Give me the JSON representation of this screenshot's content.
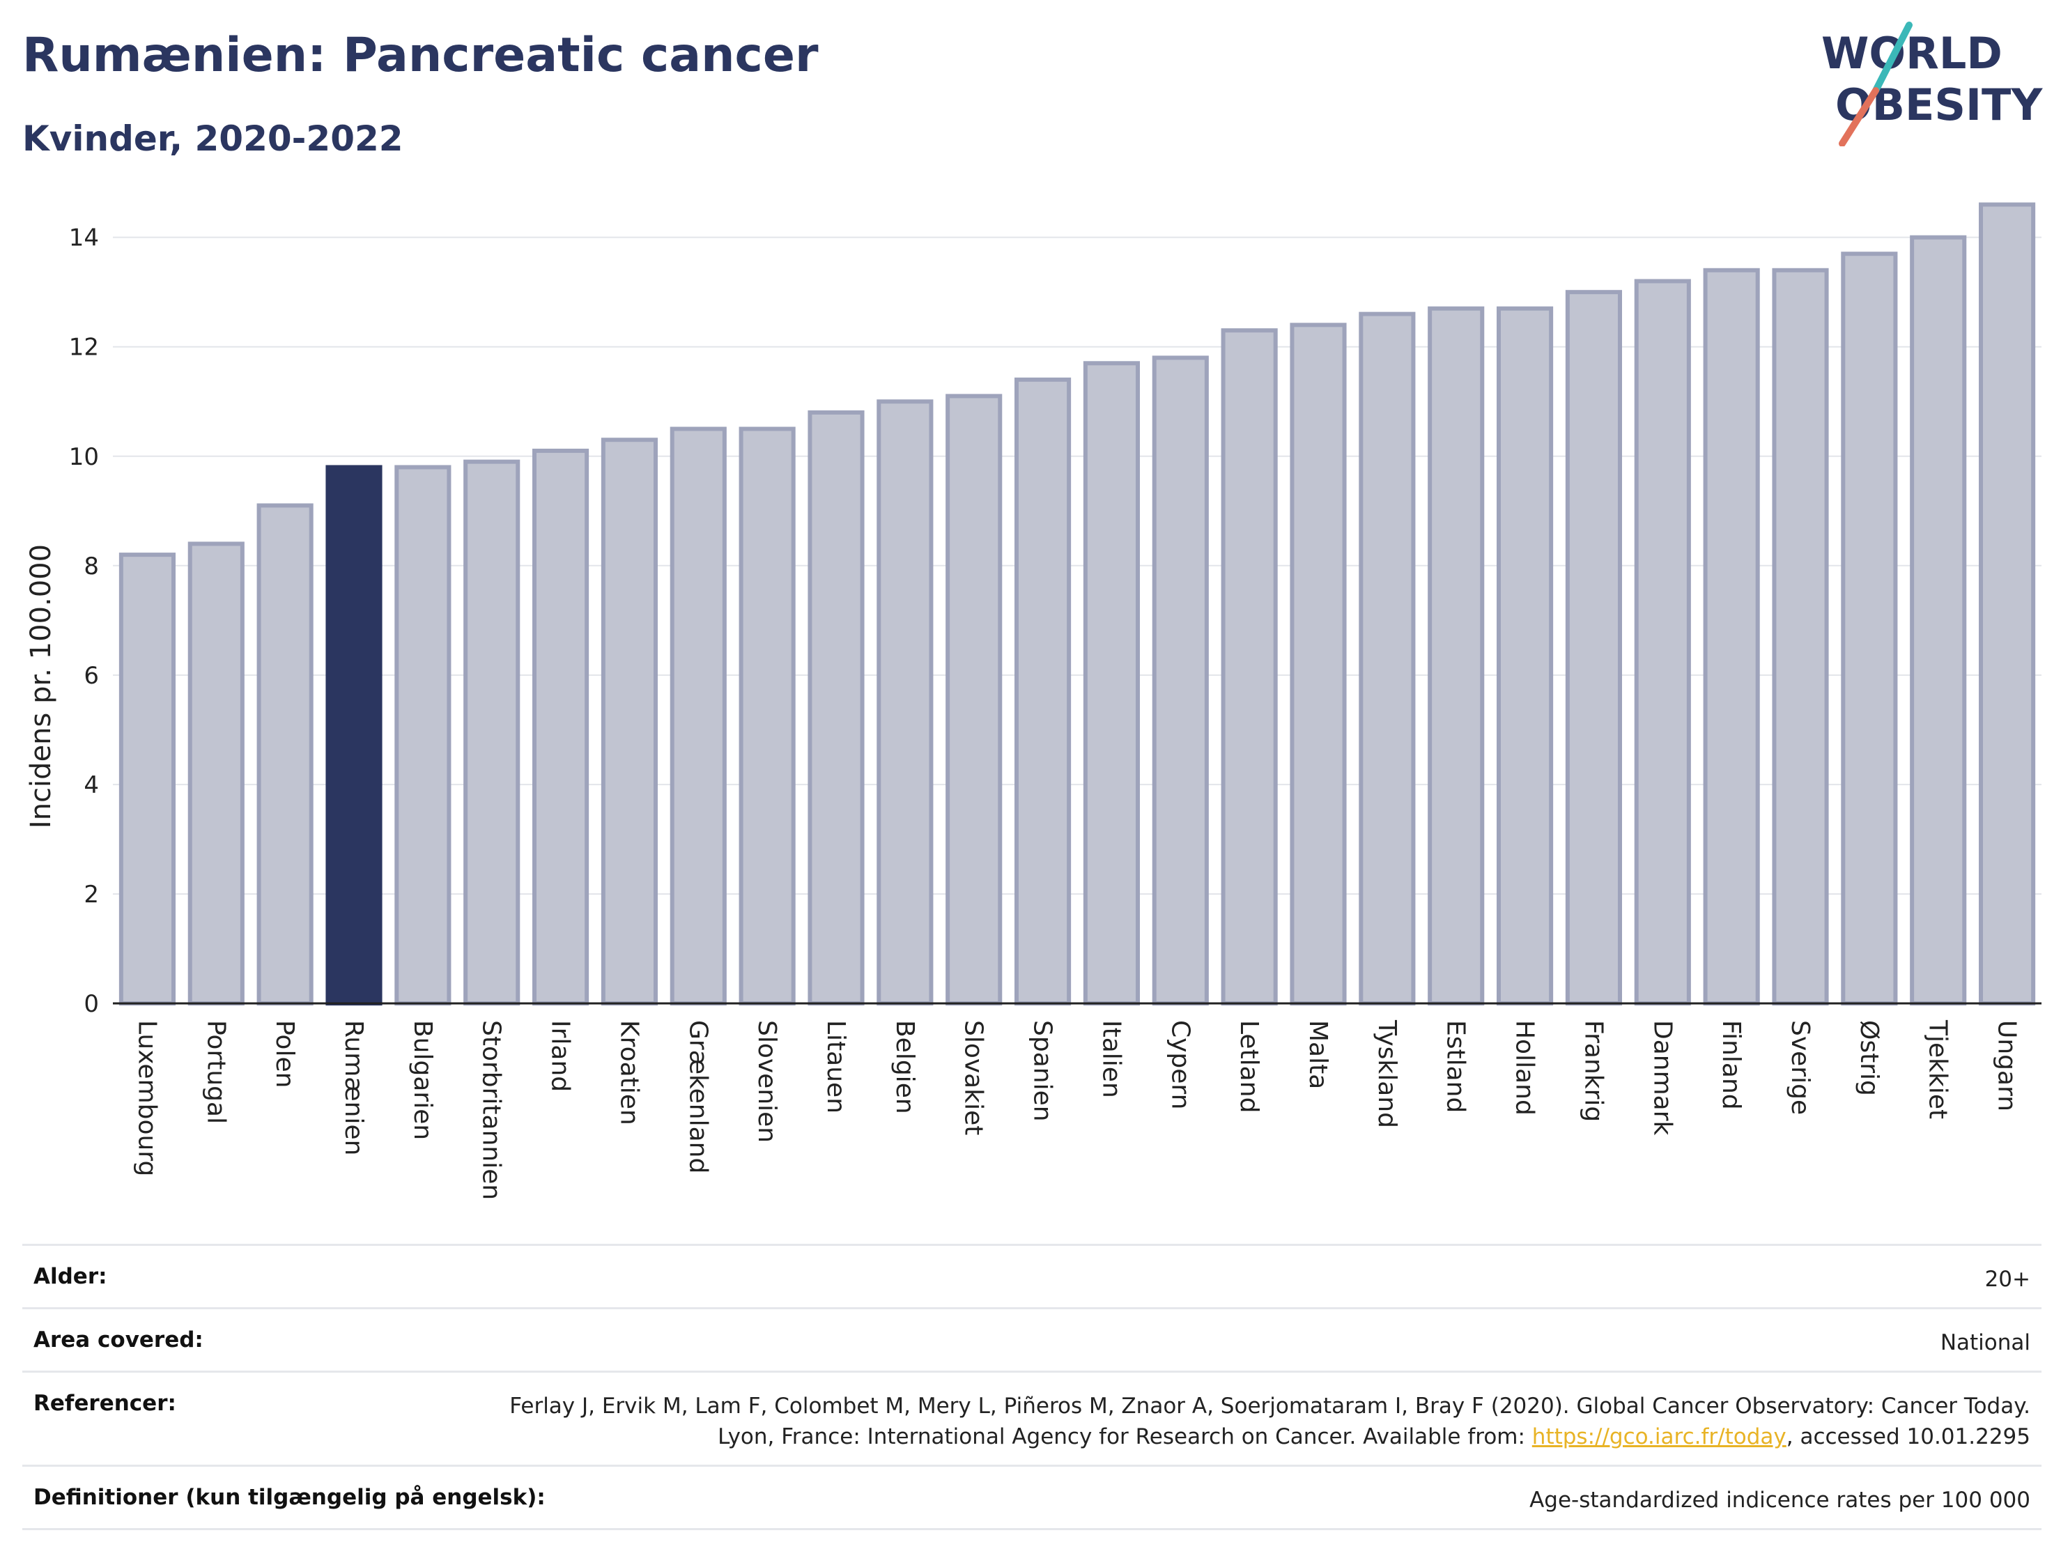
{
  "header": {
    "title": "Rumænien: Pancreatic cancer",
    "subtitle": "Kvinder, 2020-2022"
  },
  "logo": {
    "line1": "WORLD",
    "line2": "OBESITY",
    "text_color": "#2b3660",
    "slash_top_color": "#3bb8b8",
    "slash_bottom_color": "#e2725b"
  },
  "chart_data": {
    "type": "bar",
    "title": "Rumænien: Pancreatic cancer",
    "subtitle": "Kvinder, 2020-2022",
    "ylabel": "Incidens pr. 100.000",
    "xlabel": "",
    "ylim": [
      0,
      14.9
    ],
    "yticks": [
      0,
      2,
      4,
      6,
      8,
      10,
      12,
      14
    ],
    "grid": true,
    "highlight": "Rumænien",
    "colors": {
      "default": "#c1c4d1",
      "default_edge": "#9ea3bb",
      "highlight": "#2b3660"
    },
    "categories": [
      "Luxembourg",
      "Portugal",
      "Polen",
      "Rumænien",
      "Bulgarien",
      "Storbritannien",
      "Irland",
      "Kroatien",
      "Grækenland",
      "Slovenien",
      "Litauen",
      "Belgien",
      "Slovakiet",
      "Spanien",
      "Italien",
      "Cypern",
      "Letland",
      "Malta",
      "Tyskland",
      "Estland",
      "Holland",
      "Frankrig",
      "Danmark",
      "Finland",
      "Sverige",
      "Østrig",
      "Tjekkiet",
      "Ungarn"
    ],
    "values": [
      8.2,
      8.4,
      9.1,
      9.8,
      9.8,
      9.9,
      10.1,
      10.3,
      10.5,
      10.5,
      10.8,
      11.0,
      11.1,
      11.4,
      11.7,
      11.8,
      12.3,
      12.4,
      12.6,
      12.7,
      12.7,
      13.0,
      13.2,
      13.4,
      13.4,
      13.7,
      14.0,
      14.6
    ]
  },
  "info": {
    "rows": [
      {
        "key": "Alder:",
        "value": "20+"
      },
      {
        "key": "Area covered:",
        "value": "National"
      },
      {
        "key": "Referencer:",
        "value_part1": "Ferlay J, Ervik M, Lam F, Colombet M, Mery L, Piñeros M, Znaor A, Soerjomataram I, Bray F (2020). Global Cancer Observatory: Cancer Today. Lyon, France: International Agency for Research on Cancer. Available from: ",
        "link": "https://gco.iarc.fr/today",
        "value_part2": ", accessed 10.01.2295"
      },
      {
        "key": "Definitioner (kun tilgængelig på engelsk):",
        "value": "Age-standardized indicence rates per 100 000"
      }
    ]
  }
}
